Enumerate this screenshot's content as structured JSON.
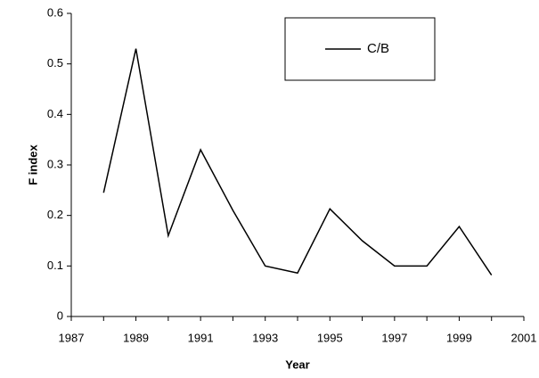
{
  "chart_data": {
    "type": "line",
    "x_label": "Year",
    "y_label": "F index",
    "x": [
      1988,
      1989,
      1990,
      1991,
      1992,
      1993,
      1994,
      1995,
      1996,
      1997,
      1998,
      1999,
      2000
    ],
    "series": [
      {
        "name": "C/B",
        "color": "#000000",
        "values": [
          0.245,
          0.53,
          0.16,
          0.33,
          0.21,
          0.1,
          0.086,
          0.213,
          0.15,
          0.1,
          0.1,
          0.178,
          0.082
        ]
      }
    ],
    "xlim": [
      1987,
      2001
    ],
    "xticks": [
      1987,
      1989,
      1991,
      1993,
      1995,
      1997,
      1999,
      2001
    ],
    "xminorticks": [
      1988,
      1990,
      1992,
      1994,
      1996,
      1998,
      2000
    ],
    "ylim": [
      0,
      0.6
    ],
    "yticks": [
      0,
      0.1,
      0.2,
      0.3,
      0.4,
      0.5,
      0.6
    ],
    "grid": false,
    "legend": "top-right"
  }
}
